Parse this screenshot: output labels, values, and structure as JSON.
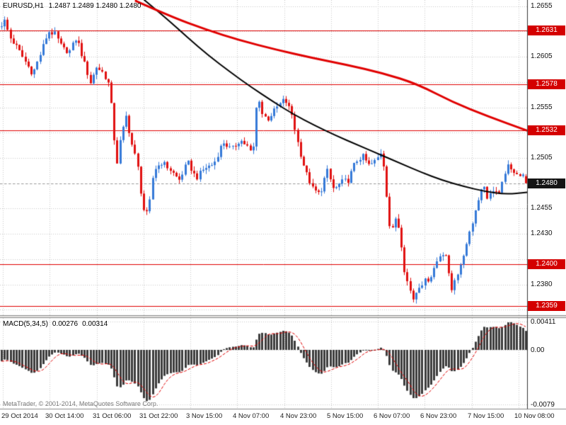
{
  "window": {
    "copyright": "MetaTrader, © 2001-2014, MetaQuotes Software Corp."
  },
  "chart_data": [
    {
      "type": "candlestick",
      "symbol": "EURUSD",
      "timeframe": "H1",
      "title": "EURUSD,H1",
      "ohlc_line": "1.2487 1.2489 1.2480 1.2480",
      "last_ohlc": [
        1.2487,
        1.2489,
        1.248,
        1.248
      ],
      "current_price": "1.2480",
      "y_range": [
        1.2349,
        1.2661
      ],
      "grid_step": 0.0025,
      "y_plain_ticks": [
        "1.2655",
        "1.2605",
        "1.2555",
        "1.2505",
        "1.2455",
        "1.2430",
        "1.2380"
      ],
      "level_lines": [
        "1.2631",
        "1.2578",
        "1.2532",
        "1.2400",
        "1.2359"
      ],
      "x_labels": [
        "29 Oct 2014",
        "30 Oct 14:00",
        "31 Oct 06:00",
        "31 Oct 22:00",
        "3 Nov 15:00",
        "4 Nov 07:00",
        "4 Nov 23:00",
        "5 Nov 15:00",
        "6 Nov 07:00",
        "6 Nov 23:00",
        "7 Nov 15:00",
        "10 Nov 08:00"
      ],
      "colors": {
        "up": "#3579d8",
        "down": "#e01010",
        "ma_red": "#e00000",
        "ma_black": "#000000",
        "level_line": "#e00000",
        "badge_level_bg": "#d40000",
        "badge_current_bg": "#141414",
        "grid": "#c9c9c9"
      },
      "candles": {
        "count": 178,
        "keypoints": [
          [
            0,
            1.2632
          ],
          [
            8,
            1.2641
          ],
          [
            16,
            1.2624
          ],
          [
            26,
            1.2614
          ],
          [
            36,
            1.2602
          ],
          [
            48,
            1.2588
          ],
          [
            58,
            1.2606
          ],
          [
            70,
            1.263
          ],
          [
            80,
            1.2627
          ],
          [
            90,
            1.2613
          ],
          [
            100,
            1.261
          ],
          [
            110,
            1.2624
          ],
          [
            120,
            1.2601
          ],
          [
            130,
            1.2579
          ],
          [
            138,
            1.2595
          ],
          [
            148,
            1.2589
          ],
          [
            156,
            1.2577
          ],
          [
            162,
            1.2537
          ],
          [
            166,
            1.2494
          ],
          [
            172,
            1.2523
          ],
          [
            180,
            1.2546
          ],
          [
            188,
            1.2519
          ],
          [
            196,
            1.2499
          ],
          [
            204,
            1.2455
          ],
          [
            211,
            1.2448
          ],
          [
            219,
            1.2493
          ],
          [
            231,
            1.2501
          ],
          [
            243,
            1.2493
          ],
          [
            255,
            1.2483
          ],
          [
            267,
            1.2501
          ],
          [
            279,
            1.2485
          ],
          [
            291,
            1.2495
          ],
          [
            304,
            1.2499
          ],
          [
            317,
            1.2521
          ],
          [
            329,
            1.2513
          ],
          [
            341,
            1.2523
          ],
          [
            351,
            1.2517
          ],
          [
            359,
            1.2507
          ],
          [
            366,
            1.2571
          ],
          [
            372,
            1.2549
          ],
          [
            380,
            1.2543
          ],
          [
            392,
            1.2554
          ],
          [
            404,
            1.2563
          ],
          [
            414,
            1.2549
          ],
          [
            424,
            1.2516
          ],
          [
            434,
            1.2491
          ],
          [
            444,
            1.2474
          ],
          [
            454,
            1.2469
          ],
          [
            464,
            1.2493
          ],
          [
            474,
            1.2473
          ],
          [
            484,
            1.2481
          ],
          [
            494,
            1.2483
          ],
          [
            504,
            1.2501
          ],
          [
            514,
            1.2507
          ],
          [
            524,
            1.2497
          ],
          [
            534,
            1.2503
          ],
          [
            542,
            1.2513
          ],
          [
            549,
            1.2464
          ],
          [
            554,
            1.2427
          ],
          [
            561,
            1.2446
          ],
          [
            567,
            1.2433
          ],
          [
            573,
            1.2396
          ],
          [
            579,
            1.2379
          ],
          [
            586,
            1.2366
          ],
          [
            594,
            1.2379
          ],
          [
            602,
            1.2383
          ],
          [
            610,
            1.2387
          ],
          [
            618,
            1.2401
          ],
          [
            626,
            1.2412
          ],
          [
            633,
            1.2409
          ],
          [
            639,
            1.2371
          ],
          [
            645,
            1.2387
          ],
          [
            653,
            1.2397
          ],
          [
            661,
            1.2421
          ],
          [
            669,
            1.2441
          ],
          [
            677,
            1.2461
          ],
          [
            684,
            1.2481
          ],
          [
            690,
            1.2466
          ],
          [
            696,
            1.2471
          ],
          [
            702,
            1.2469
          ],
          [
            708,
            1.2473
          ],
          [
            714,
            1.2483
          ],
          [
            720,
            1.2501
          ],
          [
            726,
            1.2493
          ],
          [
            732,
            1.2487
          ],
          [
            738,
            1.249
          ],
          [
            745,
            1.2482
          ]
        ]
      },
      "ma_red": [
        [
          192,
          1.266
        ],
        [
          240,
          1.2645
        ],
        [
          290,
          1.2632
        ],
        [
          340,
          1.2621
        ],
        [
          390,
          1.2612
        ],
        [
          440,
          1.2604
        ],
        [
          490,
          1.2597
        ],
        [
          540,
          1.2589
        ],
        [
          590,
          1.2578
        ],
        [
          640,
          1.256
        ],
        [
          690,
          1.2546
        ],
        [
          745,
          1.2532
        ]
      ],
      "ma_black": [
        [
          204,
          1.2661
        ],
        [
          235,
          1.2643
        ],
        [
          265,
          1.2624
        ],
        [
          295,
          1.2606
        ],
        [
          325,
          1.259
        ],
        [
          355,
          1.2575
        ],
        [
          385,
          1.2561
        ],
        [
          415,
          1.2548
        ],
        [
          445,
          1.2537
        ],
        [
          475,
          1.2527
        ],
        [
          505,
          1.2518
        ],
        [
          535,
          1.2509
        ],
        [
          565,
          1.25
        ],
        [
          595,
          1.2491
        ],
        [
          625,
          1.2483
        ],
        [
          655,
          1.2477
        ],
        [
          685,
          1.2472
        ],
        [
          715,
          1.2469
        ],
        [
          745,
          1.2471
        ]
      ]
    },
    {
      "type": "macd",
      "label": "MACD(5,34,5)",
      "value_main": "0.00276",
      "value_signal": "0.00314",
      "fast": 5,
      "slow": 34,
      "signal": 5,
      "y_ticks": [
        "0.00411",
        "0.00",
        "-0.0079"
      ],
      "y_tick_values": [
        0.00411,
        0,
        -0.0079
      ],
      "y_range": [
        -0.0085,
        0.0046
      ],
      "colors": {
        "histogram": "#3c3c3c",
        "signal": "#e00000"
      }
    }
  ]
}
